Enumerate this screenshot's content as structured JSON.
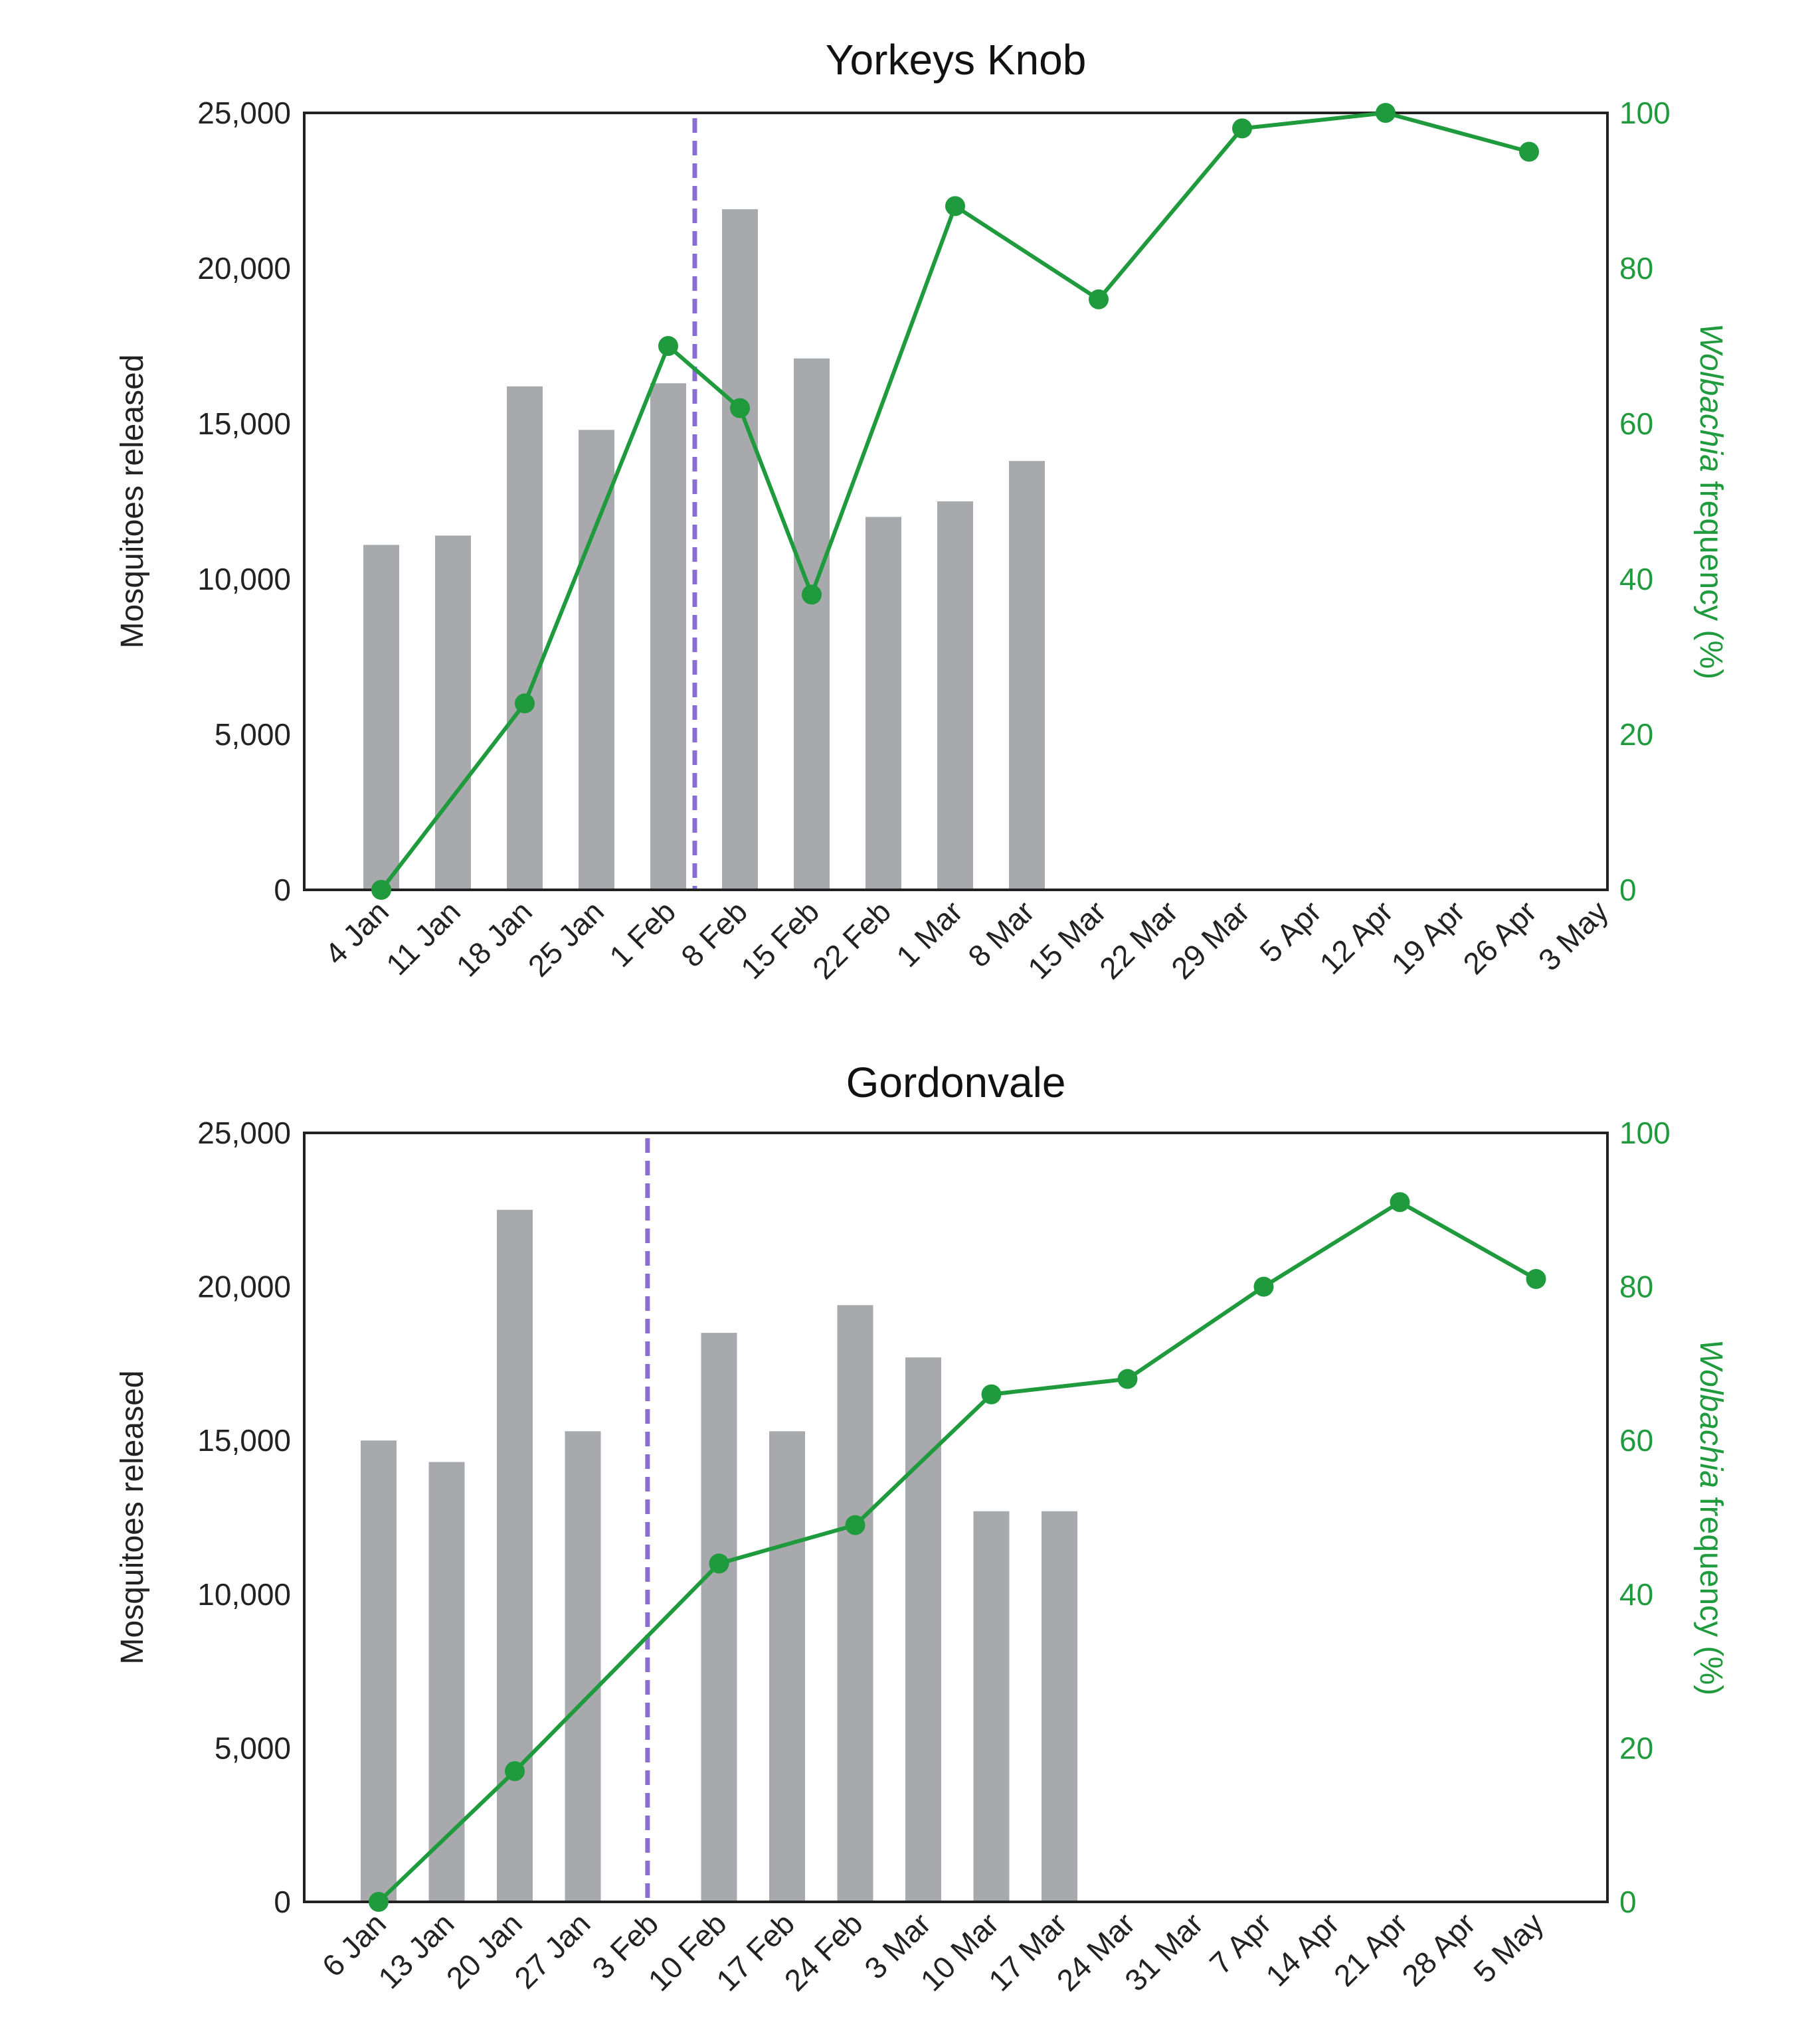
{
  "chart_data": [
    {
      "type": "bar+line",
      "title": "Yorkeys Knob",
      "ylabel": "Mosquitoes released",
      "y2label_italic": "Wolbachia",
      "y2label_rest": " frequency (%)",
      "ylim": [
        0,
        25000
      ],
      "y2lim": [
        0,
        100
      ],
      "yticks": [
        "0",
        "5,000",
        "10,000",
        "15,000",
        "20,000",
        "25,000"
      ],
      "y2ticks": [
        "0",
        "20",
        "40",
        "60",
        "80",
        "100"
      ],
      "categories": [
        "4 Jan",
        "11 Jan",
        "18 Jan",
        "25 Jan",
        "1 Feb",
        "8 Feb",
        "15 Feb",
        "22 Feb",
        "1 Mar",
        "8 Mar",
        "15 Mar",
        "22 Mar",
        "29 Mar",
        "5 Apr",
        "12 Apr",
        "19 Apr",
        "26 Apr",
        "3 May"
      ],
      "bars": {
        "name": "Mosquitoes released",
        "values": [
          11100,
          11400,
          16200,
          14800,
          16300,
          21900,
          17100,
          12000,
          12500,
          13800,
          null,
          null,
          null,
          null,
          null,
          null,
          null,
          null
        ]
      },
      "line": {
        "name": "Wolbachia frequency (%)",
        "values": [
          0,
          null,
          24,
          null,
          70,
          62,
          38,
          null,
          88,
          null,
          76,
          null,
          98,
          null,
          100,
          null,
          95,
          null
        ]
      },
      "dashed_line_between": [
        "1 Feb",
        "8 Feb"
      ],
      "colors": {
        "bar": "#a7a9ac",
        "line": "#1f9a3c",
        "dashed": "#8a6fd1"
      }
    },
    {
      "type": "bar+line",
      "title": "Gordonvale",
      "ylabel": "Mosquitoes released",
      "y2label_italic": "Wolbachia",
      "y2label_rest": " frequency (%)",
      "ylim": [
        0,
        25000
      ],
      "y2lim": [
        0,
        100
      ],
      "yticks": [
        "0",
        "5,000",
        "10,000",
        "15,000",
        "20,000",
        "25,000"
      ],
      "y2ticks": [
        "0",
        "20",
        "40",
        "60",
        "80",
        "100"
      ],
      "categories": [
        "6 Jan",
        "13 Jan",
        "20 Jan",
        "27 Jan",
        "3 Feb",
        "10 Feb",
        "17 Feb",
        "24 Feb",
        "3 Mar",
        "10 Mar",
        "17 Mar",
        "24 Mar",
        "31 Mar",
        "7 Apr",
        "14 Apr",
        "21 Apr",
        "28 Apr",
        "5 May"
      ],
      "bars": {
        "name": "Mosquitoes released",
        "values": [
          15000,
          14300,
          22500,
          15300,
          null,
          18500,
          15300,
          19400,
          17700,
          12700,
          12700,
          null,
          null,
          null,
          null,
          null,
          null,
          null
        ]
      },
      "line": {
        "name": "Wolbachia frequency (%)",
        "values": [
          0,
          null,
          17,
          null,
          null,
          44,
          null,
          49,
          null,
          66,
          null,
          68,
          null,
          80,
          null,
          91,
          null,
          81
        ]
      },
      "dashed_line_between": [
        "27 Jan",
        "3 Feb"
      ],
      "colors": {
        "bar": "#a7a9ac",
        "line": "#1f9a3c",
        "dashed": "#8a6fd1"
      }
    }
  ]
}
